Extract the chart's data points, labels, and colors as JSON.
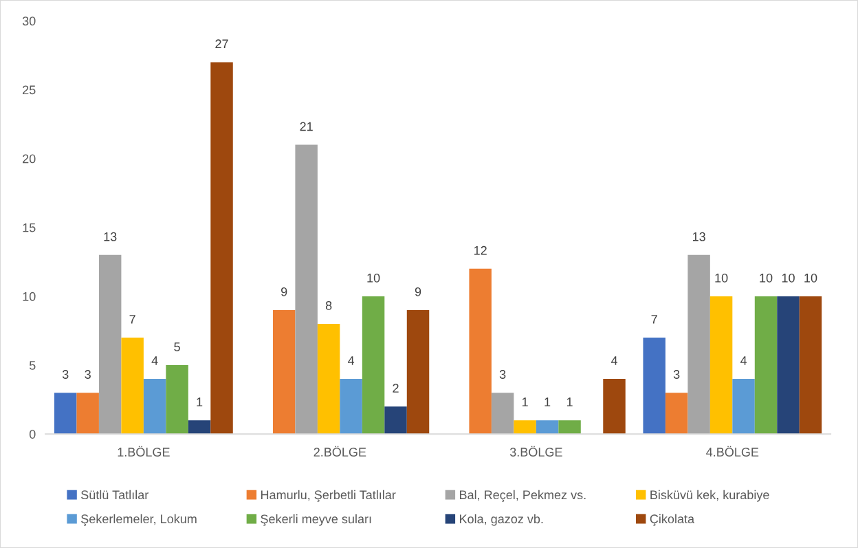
{
  "chart_data": {
    "type": "bar",
    "categories": [
      "1.BÖLGE",
      "2.BÖLGE",
      "3.BÖLGE",
      "4.BÖLGE"
    ],
    "series": [
      {
        "name": "Sütlü Tatlılar",
        "color": "#4472c4",
        "values": [
          3,
          null,
          null,
          7
        ]
      },
      {
        "name": "Hamurlu, Şerbetli Tatlılar",
        "color": "#ed7d31",
        "values": [
          3,
          9,
          12,
          3
        ]
      },
      {
        "name": "Bal, Reçel, Pekmez vs.",
        "color": "#a5a5a5",
        "values": [
          13,
          21,
          3,
          13
        ]
      },
      {
        "name": "Bisküvü kek, kurabiye",
        "color": "#ffc000",
        "values": [
          7,
          8,
          1,
          10
        ]
      },
      {
        "name": "Şekerlemeler, Lokum",
        "color": "#5b9bd5",
        "values": [
          4,
          4,
          1,
          4
        ]
      },
      {
        "name": "Şekerli meyve suları",
        "color": "#70ad47",
        "values": [
          5,
          10,
          1,
          10
        ]
      },
      {
        "name": "Kola, gazoz vb.",
        "color": "#264478",
        "values": [
          1,
          2,
          null,
          10
        ]
      },
      {
        "name": "Çikolata",
        "color": "#9e480e",
        "values": [
          27,
          9,
          4,
          10
        ]
      }
    ],
    "ylim": [
      0,
      30
    ],
    "yticks": [
      0,
      5,
      10,
      15,
      20,
      25,
      30
    ],
    "data_labels": true,
    "legend": "bottom",
    "grid": false
  }
}
